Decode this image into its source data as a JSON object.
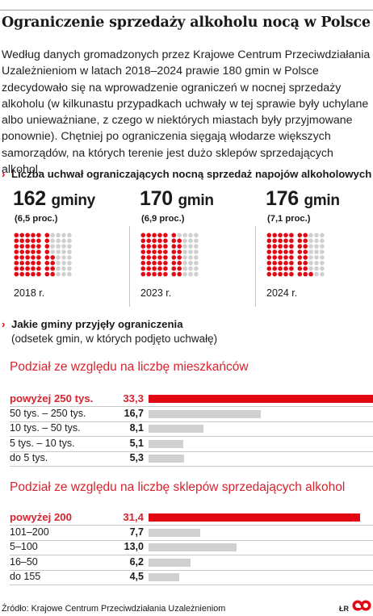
{
  "title": "Ograniczenie sprzedaży alkoholu nocą w Polsce",
  "intro": "Według danych gromadzonych przez Krajowe Centrum Przeciwdziałania Uzależnieniom w latach 2018–2024 prawie 180 gmin w Polsce zdecydowało się na wprowadzenie ograniczeń w nocnej sprzedaży alkoholu (w kilkunastu przypadkach uchwały w tej sprawie były uchylane albo unieważniane, z czego w niektórych miastach były przyjmowane ponownie). Chętniej po ograniczenia sięgają włodarze większych samorządów, na których terenie jest dużo sklepów sprzedających alkohol.",
  "section1": {
    "marker": "›",
    "title": "Liczba uchwał ograniczających nocną sprzedaż napojów alkoholowych"
  },
  "section2": {
    "marker": "›",
    "title": "Jakie gminy przyjęły ograniczenia",
    "subtitle": "(odsetek gmin, w których podjęto uchwałę)"
  },
  "source": "Źródło: Krajowe Centrum Przeciwdziałania Uzależnieniom",
  "credits": {
    "author": "ŁR",
    "brand": "GP"
  },
  "colors": {
    "red": "#e30613",
    "grey": "#d0d0d0",
    "text": "#1a1a1a"
  },
  "chart_data": [
    {
      "type": "pictogram",
      "categories": [
        "2018 r.",
        "2023 r.",
        "2024 r."
      ],
      "counts": [
        162,
        170,
        176
      ],
      "count_labels": [
        "162",
        "170",
        "176"
      ],
      "units": [
        "gminy",
        "gmin",
        "gmin"
      ],
      "percent_labels": [
        "(6,5 proc.)",
        "(6,9 proc.)",
        "(7,1 proc.)"
      ],
      "values": [
        6.5,
        6.9,
        7.1
      ]
    },
    {
      "type": "bar",
      "title": "Podział ze względu na liczbę mieszkańców",
      "categories": [
        "powyżej 250 tys.",
        "50 tys. – 250 tys.",
        "10 tys. – 50 tys.",
        "5 tys. – 10 tys.",
        "do 5 tys."
      ],
      "value_labels": [
        "33,3",
        "16,7",
        "8,1",
        "5,1",
        "5,3"
      ],
      "values": [
        33.3,
        16.7,
        8.1,
        5.1,
        5.3
      ],
      "highlight": [
        true,
        false,
        false,
        false,
        false
      ],
      "xlim": [
        0,
        33.3
      ]
    },
    {
      "type": "bar",
      "title": "Podział ze względu na liczbę sklepów sprzedających alkohol",
      "categories": [
        "powyżej 200",
        "101–200",
        "5–100",
        "16–50",
        "do 155"
      ],
      "value_labels": [
        "31,4",
        "7,7",
        "13,0",
        "6,2",
        "4,5"
      ],
      "values": [
        31.4,
        7.7,
        13.0,
        6.2,
        4.5
      ],
      "highlight": [
        true,
        false,
        false,
        false,
        false
      ],
      "xlim": [
        0,
        33.3
      ]
    }
  ]
}
